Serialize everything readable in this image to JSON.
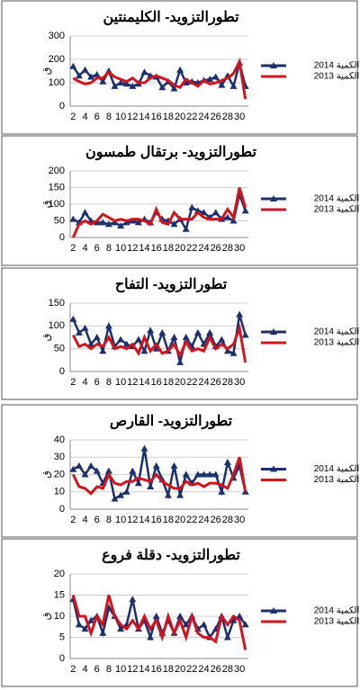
{
  "chart_data": [
    {
      "type": "line",
      "title": "تطورالتزويد- الكليمنتين",
      "ylabel": "ق",
      "categories": [
        2,
        null,
        4,
        null,
        6,
        null,
        8,
        null,
        10,
        null,
        12,
        null,
        14,
        null,
        16,
        null,
        18,
        null,
        20,
        null,
        22,
        null,
        24,
        null,
        26,
        null,
        28,
        null,
        30,
        null
      ],
      "ylim": [
        0,
        300
      ],
      "yticks": [
        0,
        100,
        200,
        300
      ],
      "grid": true,
      "series": [
        {
          "name": "الكمية 2014",
          "color": "#1c2f6e",
          "values": [
            170,
            130,
            155,
            125,
            135,
            105,
            150,
            85,
            100,
            95,
            85,
            95,
            145,
            130,
            125,
            80,
            105,
            75,
            155,
            100,
            105,
            100,
            110,
            115,
            125,
            90,
            130,
            85,
            185,
            85
          ]
        },
        {
          "name": "الكمية 2013",
          "color": "#d4141c",
          "values": [
            120,
            105,
            95,
            100,
            120,
            120,
            145,
            125,
            115,
            105,
            120,
            100,
            100,
            120,
            130,
            120,
            110,
            90,
            80,
            115,
            100,
            85,
            110,
            95,
            100,
            110,
            120,
            140,
            190,
            30
          ]
        }
      ]
    },
    {
      "type": "line",
      "title": "تطورالتزويد- برتقال طمسون",
      "ylabel": "ق",
      "categories": [
        2,
        null,
        4,
        null,
        6,
        null,
        8,
        null,
        10,
        null,
        12,
        null,
        14,
        null,
        16,
        null,
        18,
        null,
        20,
        null,
        22,
        null,
        24,
        null,
        26,
        null,
        28,
        null,
        30,
        null
      ],
      "ylim": [
        0,
        200
      ],
      "yticks": [
        0,
        50,
        100,
        150,
        200
      ],
      "grid": true,
      "series": [
        {
          "name": "الكمية 2014",
          "color": "#1c2f6e",
          "values": [
            55,
            45,
            75,
            50,
            45,
            45,
            40,
            45,
            35,
            45,
            50,
            45,
            55,
            45,
            75,
            55,
            50,
            40,
            55,
            25,
            90,
            80,
            75,
            60,
            75,
            55,
            60,
            50,
            130,
            80
          ]
        },
        {
          "name": "الكمية 2013",
          "color": "#d4141c",
          "values": [
            0,
            40,
            50,
            40,
            50,
            70,
            60,
            50,
            55,
            50,
            55,
            55,
            50,
            40,
            85,
            45,
            40,
            75,
            55,
            55,
            55,
            75,
            60,
            55,
            55,
            55,
            85,
            60,
            150,
            90
          ]
        }
      ]
    },
    {
      "type": "line",
      "title": "تطورالتزويد- التفاح",
      "ylabel": "ق",
      "categories": [
        2,
        null,
        4,
        null,
        6,
        null,
        8,
        null,
        10,
        null,
        12,
        null,
        14,
        null,
        16,
        null,
        18,
        null,
        20,
        null,
        22,
        null,
        24,
        null,
        26,
        null,
        28,
        null,
        30,
        null
      ],
      "ylim": [
        0,
        150
      ],
      "yticks": [
        0,
        50,
        100,
        150
      ],
      "grid": true,
      "series": [
        {
          "name": "الكمية 2014",
          "color": "#1c2f6e",
          "values": [
            115,
            85,
            95,
            60,
            75,
            45,
            100,
            55,
            70,
            60,
            55,
            70,
            45,
            90,
            50,
            85,
            45,
            75,
            20,
            75,
            55,
            85,
            60,
            85,
            55,
            70,
            45,
            40,
            125,
            80
          ]
        },
        {
          "name": "الكمية 2013",
          "color": "#d4141c",
          "values": [
            80,
            55,
            60,
            50,
            60,
            55,
            75,
            50,
            55,
            50,
            60,
            40,
            75,
            45,
            60,
            40,
            45,
            60,
            35,
            65,
            45,
            50,
            45,
            75,
            50,
            60,
            50,
            60,
            95,
            20
          ]
        }
      ]
    },
    {
      "type": "line",
      "title": "تطورالتزويد- القارص",
      "ylabel": "ق",
      "categories": [
        2,
        null,
        4,
        null,
        6,
        null,
        8,
        null,
        10,
        null,
        12,
        null,
        14,
        null,
        16,
        null,
        18,
        null,
        20,
        null,
        22,
        null,
        24,
        null,
        26,
        null,
        28,
        null,
        30,
        null
      ],
      "ylim": [
        0,
        40
      ],
      "yticks": [
        0,
        10,
        20,
        30,
        40
      ],
      "grid": true,
      "series": [
        {
          "name": "الكمية 2014",
          "color": "#1c2f6e",
          "values": [
            23,
            25,
            20,
            25,
            22,
            15,
            22,
            6,
            8,
            10,
            22,
            15,
            35,
            13,
            25,
            17,
            8,
            25,
            8,
            20,
            15,
            20,
            20,
            20,
            20,
            10,
            27,
            18,
            25,
            10
          ]
        },
        {
          "name": "الكمية 2013",
          "color": "#d4141c",
          "values": [
            20,
            13,
            12,
            9,
            13,
            12,
            20,
            15,
            14,
            16,
            16,
            18,
            17,
            16,
            20,
            16,
            14,
            12,
            12,
            16,
            14,
            15,
            13,
            15,
            15,
            14,
            12,
            20,
            30,
            10
          ]
        }
      ]
    },
    {
      "type": "line",
      "title": "تطورالتزويد- دقلة فروع",
      "ylabel": "ق",
      "categories": [
        2,
        null,
        4,
        null,
        6,
        null,
        8,
        null,
        10,
        null,
        12,
        null,
        14,
        null,
        16,
        null,
        18,
        null,
        20,
        null,
        22,
        null,
        24,
        null,
        26,
        null,
        28,
        null,
        30,
        null
      ],
      "ylim": [
        0,
        20
      ],
      "yticks": [
        0,
        5,
        10,
        15,
        20
      ],
      "grid": true,
      "series": [
        {
          "name": "الكمية 2014",
          "color": "#1c2f6e",
          "values": [
            14,
            8,
            7,
            9,
            10,
            6,
            12,
            10,
            7,
            8,
            14,
            7,
            9,
            5,
            10,
            6,
            9,
            6,
            10,
            8,
            10,
            7,
            8,
            5,
            7,
            10,
            5,
            9,
            10,
            8
          ]
        },
        {
          "name": "الكمية 2013",
          "color": "#d4141c",
          "values": [
            15,
            10,
            10,
            6,
            10,
            8,
            15,
            10,
            8,
            7,
            9,
            7,
            10,
            7,
            9,
            5,
            10,
            6,
            9,
            5,
            10,
            6,
            5,
            5,
            4,
            10,
            8,
            10,
            9,
            2
          ]
        }
      ]
    }
  ]
}
